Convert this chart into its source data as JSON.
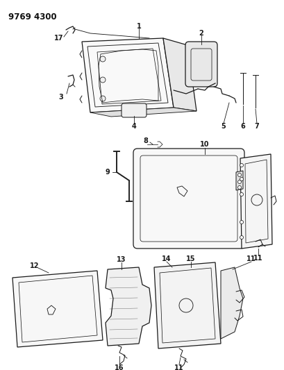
{
  "title": "9769 4300",
  "bg_color": "#ffffff",
  "lc": "#1a1a1a",
  "fig_width": 4.1,
  "fig_height": 5.33,
  "dpi": 100
}
